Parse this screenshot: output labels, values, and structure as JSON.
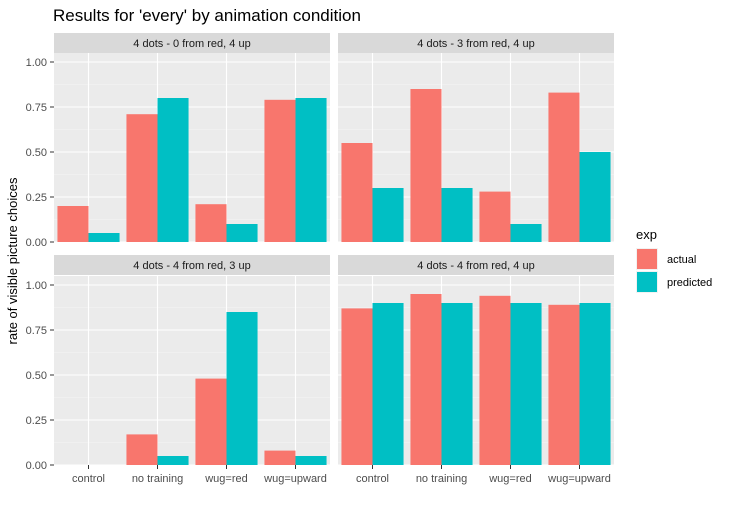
{
  "chart_data": {
    "type": "bar",
    "title": "Results for 'every' by animation condition",
    "ylabel": "rate of visible picture choices",
    "xlabel": "",
    "ylim": [
      0,
      1.05
    ],
    "yticks": [
      "0.00",
      "0.25",
      "0.50",
      "0.75",
      "1.00"
    ],
    "ytick_values": [
      0,
      0.25,
      0.5,
      0.75,
      1.0
    ],
    "categories": [
      "control",
      "no training",
      "wug=red",
      "wug=upward"
    ],
    "legend": {
      "title": "exp",
      "position": "right",
      "entries": [
        "actual",
        "predicted"
      ]
    },
    "colors": {
      "actual": "#F8766D",
      "predicted": "#00BFC4"
    },
    "grid": true,
    "panels": [
      {
        "strip": "4 dots - 0 from red, 4 up",
        "series": [
          {
            "name": "actual",
            "values": [
              0.2,
              0.71,
              0.21,
              0.79
            ]
          },
          {
            "name": "predicted",
            "values": [
              0.05,
              0.8,
              0.1,
              0.8
            ]
          }
        ]
      },
      {
        "strip": "4 dots - 3 from red, 4 up",
        "series": [
          {
            "name": "actual",
            "values": [
              0.55,
              0.85,
              0.28,
              0.83
            ]
          },
          {
            "name": "predicted",
            "values": [
              0.3,
              0.3,
              0.1,
              0.5
            ]
          }
        ]
      },
      {
        "strip": "4 dots - 4 from red, 3 up",
        "series": [
          {
            "name": "actual",
            "values": [
              0.0,
              0.17,
              0.48,
              0.08
            ]
          },
          {
            "name": "predicted",
            "values": [
              0.0,
              0.05,
              0.85,
              0.05
            ]
          }
        ]
      },
      {
        "strip": "4 dots - 4 from red, 4 up",
        "series": [
          {
            "name": "actual",
            "values": [
              0.87,
              0.95,
              0.94,
              0.89
            ]
          },
          {
            "name": "predicted",
            "values": [
              0.9,
              0.9,
              0.9,
              0.9
            ]
          }
        ]
      }
    ]
  }
}
